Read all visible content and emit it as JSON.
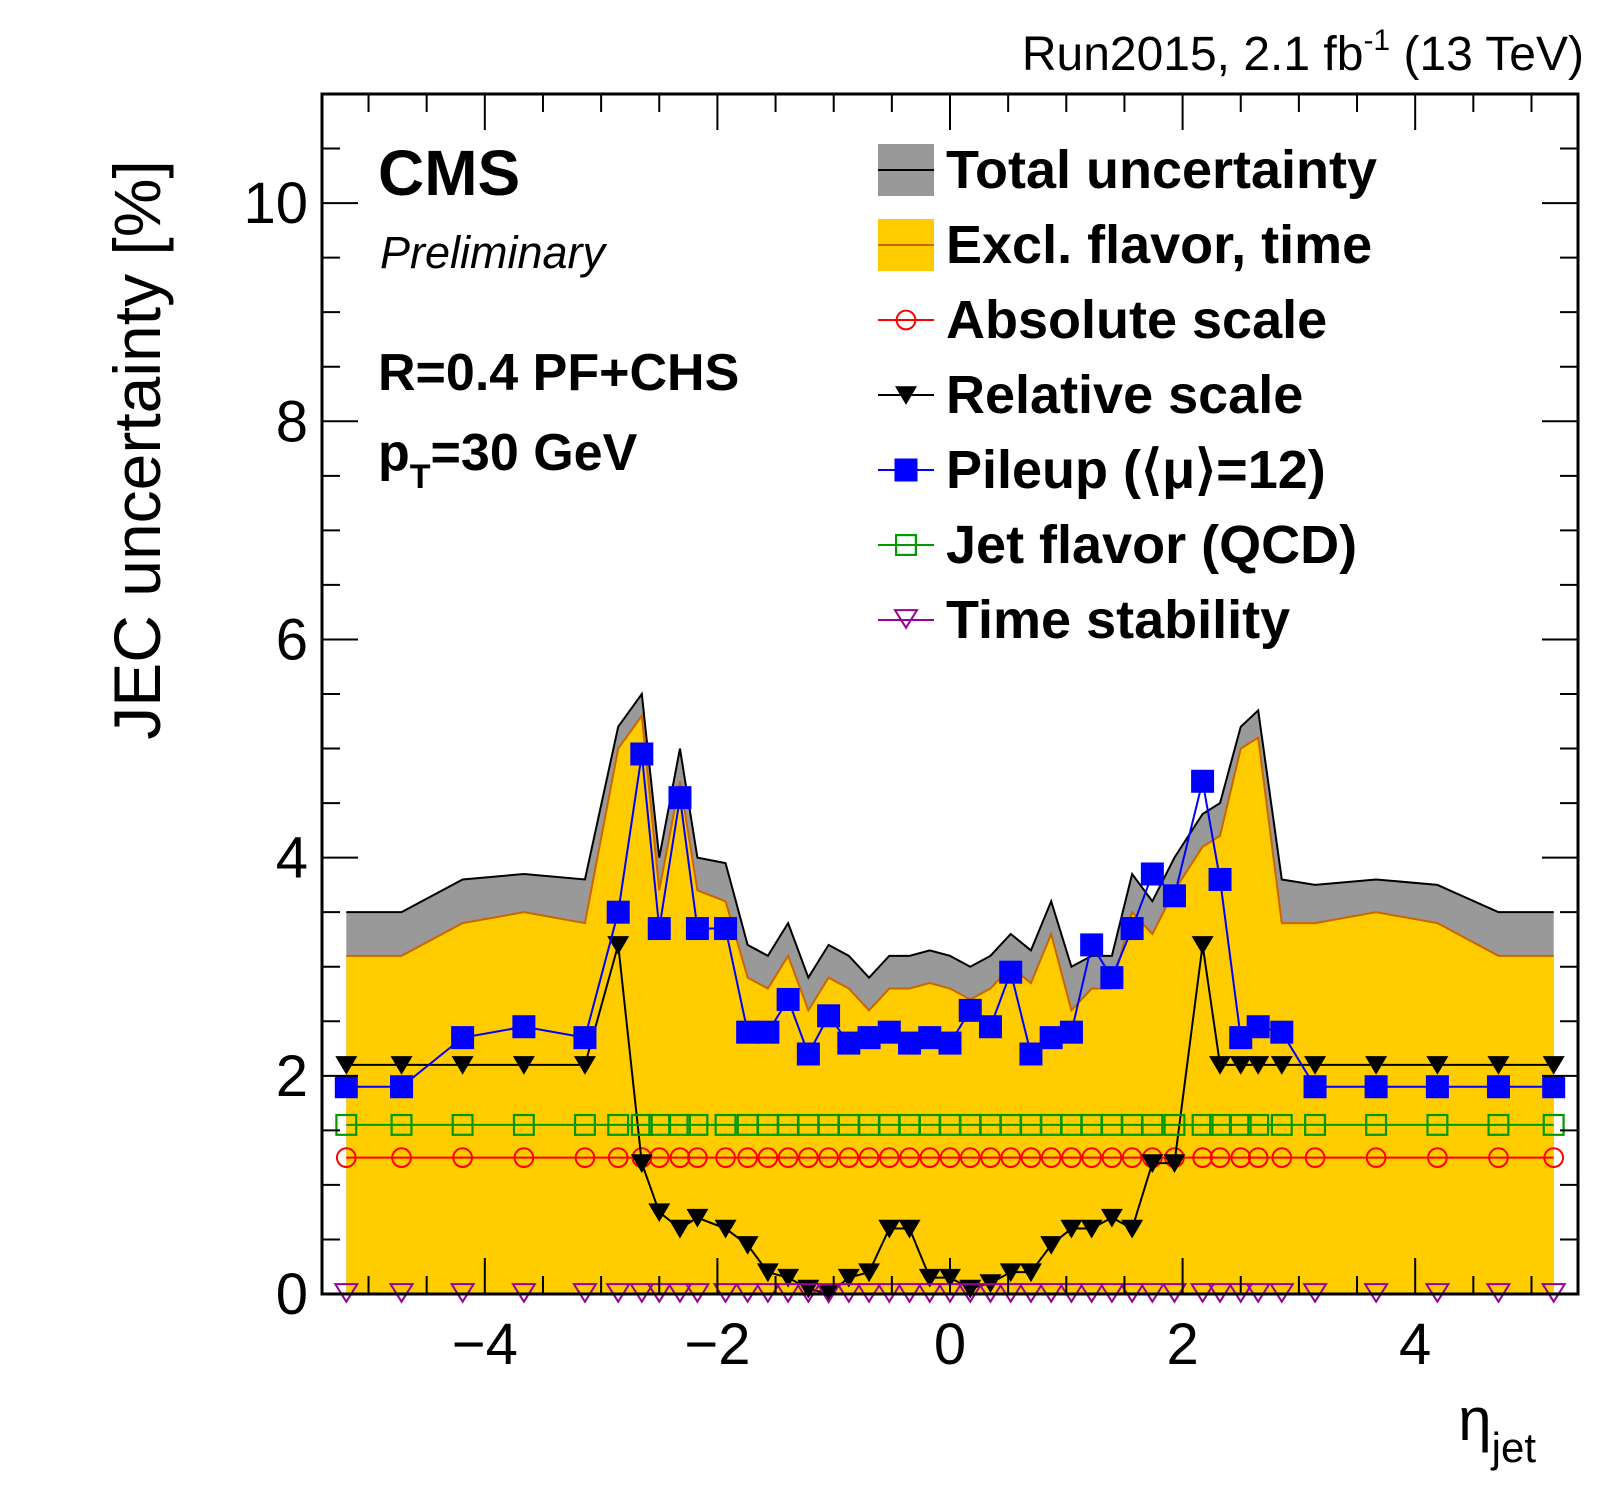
{
  "chart_data": {
    "type": "line",
    "run_label": "Run2015, 2.1 fb",
    "run_label_exp": "-1",
    "run_label_tail": " (13 TeV)",
    "cms_label": "CMS",
    "preliminary_label": "Preliminary",
    "jet_label": "R=0.4 PF+CHS",
    "pt_label_p": "p",
    "pt_label_sub": "T",
    "pt_label_tail": "=30 GeV",
    "ylabel": "JEC uncertainty [%]",
    "xlabel": "η",
    "xlabel_sub": "jet",
    "xlim": [
      -5.4,
      5.4
    ],
    "ylim": [
      0,
      11
    ],
    "x_ticks": [
      -4,
      -2,
      0,
      2,
      4
    ],
    "x_tick_labels": [
      "−4",
      "−2",
      "0",
      "2",
      "4"
    ],
    "y_ticks": [
      0,
      2,
      4,
      6,
      8,
      10
    ],
    "y_tick_labels": [
      "0",
      "2",
      "4",
      "6",
      "8",
      "10"
    ],
    "eta": [
      -5.191,
      -4.716,
      -4.191,
      -3.664,
      -3.139,
      -2.853,
      -2.65,
      -2.5,
      -2.322,
      -2.172,
      -1.93,
      -1.74,
      -1.566,
      -1.392,
      -1.218,
      -1.044,
      -0.87,
      -0.696,
      -0.522,
      -0.348,
      -0.174,
      0.0,
      0.174,
      0.348,
      0.522,
      0.696,
      0.87,
      1.044,
      1.218,
      1.392,
      1.566,
      1.74,
      1.93,
      2.172,
      2.322,
      2.5,
      2.65,
      2.853,
      3.139,
      3.664,
      4.191,
      4.716,
      5.191
    ],
    "bands": [
      {
        "name": "Total uncertainty",
        "color": "#999999",
        "values": [
          3.5,
          3.5,
          3.8,
          3.85,
          3.8,
          5.2,
          5.5,
          4.0,
          5.0,
          4.0,
          3.95,
          3.2,
          3.1,
          3.4,
          2.9,
          3.2,
          3.1,
          2.9,
          3.1,
          3.1,
          3.15,
          3.1,
          3.0,
          3.1,
          3.3,
          3.15,
          3.6,
          3.0,
          3.1,
          3.1,
          3.85,
          3.6,
          4.0,
          4.4,
          4.5,
          5.2,
          5.35,
          3.8,
          3.75,
          3.8,
          3.75,
          3.5,
          3.5
        ]
      },
      {
        "name": "Excl. flavor, time",
        "color": "#ffcc00",
        "line_color": "#cc6600",
        "values": [
          3.1,
          3.1,
          3.4,
          3.5,
          3.4,
          5.0,
          5.3,
          3.7,
          4.7,
          3.7,
          3.6,
          2.9,
          2.8,
          3.1,
          2.6,
          2.9,
          2.8,
          2.6,
          2.8,
          2.8,
          2.85,
          2.8,
          2.7,
          2.8,
          3.0,
          2.85,
          3.3,
          2.6,
          2.8,
          2.8,
          3.5,
          3.3,
          3.7,
          4.1,
          4.2,
          5.0,
          5.1,
          3.4,
          3.4,
          3.5,
          3.4,
          3.1,
          3.1
        ]
      }
    ],
    "series": [
      {
        "name": "Absolute scale",
        "color": "#ff0000",
        "marker": "open-circle",
        "values": [
          1.25,
          1.25,
          1.25,
          1.25,
          1.25,
          1.25,
          1.25,
          1.25,
          1.25,
          1.25,
          1.25,
          1.25,
          1.25,
          1.25,
          1.25,
          1.25,
          1.25,
          1.25,
          1.25,
          1.25,
          1.25,
          1.25,
          1.25,
          1.25,
          1.25,
          1.25,
          1.25,
          1.25,
          1.25,
          1.25,
          1.25,
          1.25,
          1.25,
          1.25,
          1.25,
          1.25,
          1.25,
          1.25,
          1.25,
          1.25,
          1.25,
          1.25,
          1.25
        ]
      },
      {
        "name": "Relative scale",
        "color": "#000000",
        "marker": "filled-triangle-down",
        "values": [
          2.1,
          2.1,
          2.1,
          2.1,
          2.1,
          3.2,
          1.2,
          0.75,
          0.6,
          0.7,
          0.6,
          0.45,
          0.2,
          0.15,
          0.05,
          0.0,
          0.15,
          0.2,
          0.6,
          0.6,
          0.15,
          0.15,
          0.05,
          0.1,
          0.2,
          0.2,
          0.45,
          0.6,
          0.6,
          0.7,
          0.6,
          1.2,
          1.2,
          3.2,
          2.1,
          2.1,
          2.1,
          2.1,
          2.1,
          2.1,
          2.1,
          2.1,
          2.1
        ]
      },
      {
        "name": "Pileup (⟨μ⟩=12)",
        "color": "#0000ff",
        "marker": "filled-square",
        "values": [
          1.9,
          1.9,
          2.35,
          2.45,
          2.35,
          3.5,
          4.95,
          3.35,
          4.55,
          3.35,
          3.35,
          2.4,
          2.4,
          2.7,
          2.2,
          2.55,
          2.3,
          2.35,
          2.4,
          2.3,
          2.35,
          2.3,
          2.6,
          2.45,
          2.95,
          2.2,
          2.35,
          2.4,
          3.2,
          2.9,
          3.35,
          3.85,
          3.65,
          4.7,
          3.8,
          2.35,
          2.45,
          2.4,
          1.9,
          1.9,
          1.9,
          1.9,
          1.9
        ]
      },
      {
        "name": "Jet flavor (QCD)",
        "color": "#009900",
        "marker": "open-square",
        "values": [
          1.55,
          1.55,
          1.55,
          1.55,
          1.55,
          1.55,
          1.55,
          1.55,
          1.55,
          1.55,
          1.55,
          1.55,
          1.55,
          1.55,
          1.55,
          1.55,
          1.55,
          1.55,
          1.55,
          1.55,
          1.55,
          1.55,
          1.55,
          1.55,
          1.55,
          1.55,
          1.55,
          1.55,
          1.55,
          1.55,
          1.55,
          1.55,
          1.55,
          1.55,
          1.55,
          1.55,
          1.55,
          1.55,
          1.55,
          1.55,
          1.55,
          1.55,
          1.55
        ]
      },
      {
        "name": "Time stability",
        "color": "#990099",
        "marker": "open-triangle-down",
        "values": [
          0,
          0,
          0,
          0,
          0,
          0,
          0,
          0,
          0,
          0,
          0,
          0,
          0,
          0,
          0,
          0,
          0,
          0,
          0,
          0,
          0,
          0,
          0,
          0,
          0,
          0,
          0,
          0,
          0,
          0,
          0,
          0,
          0,
          0,
          0,
          0,
          0,
          0,
          0,
          0,
          0,
          0,
          0
        ]
      }
    ],
    "legend": [
      {
        "label": "Total uncertainty",
        "kind": "band",
        "color": "#999999",
        "line": "#000000"
      },
      {
        "label": "Excl. flavor, time",
        "kind": "band",
        "color": "#ffcc00",
        "line": "#cc6600"
      },
      {
        "label": "Absolute scale",
        "kind": "marker",
        "color": "#ff0000",
        "marker": "open-circle"
      },
      {
        "label": "Relative scale",
        "kind": "marker",
        "color": "#000000",
        "marker": "filled-triangle-down"
      },
      {
        "label": "Pileup (⟨μ⟩=12)",
        "kind": "marker",
        "color": "#0000ff",
        "marker": "filled-square"
      },
      {
        "label": "Jet flavor (QCD)",
        "kind": "marker",
        "color": "#009900",
        "marker": "open-square"
      },
      {
        "label": "Time stability",
        "kind": "marker",
        "color": "#990099",
        "marker": "open-triangle-down"
      }
    ],
    "legend_position": "top-right",
    "grid": false
  }
}
